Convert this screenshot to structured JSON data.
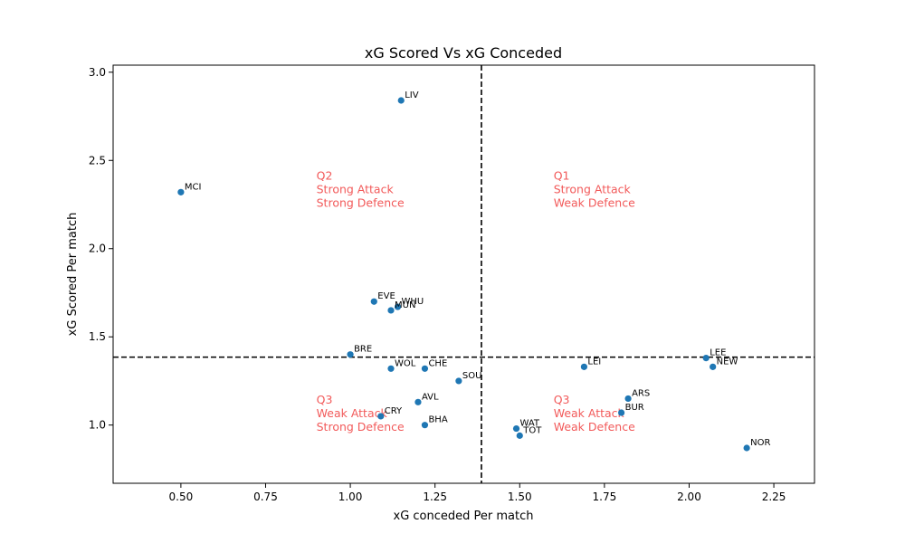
{
  "chart_data": {
    "type": "scatter",
    "title": "xG Scored Vs xG Conceded",
    "xlabel": "xG conceded Per match",
    "ylabel": "xG Scored Per match",
    "xlim": [
      0.3,
      2.37
    ],
    "ylim": [
      0.67,
      3.04
    ],
    "xticks": [
      "0.50",
      "0.75",
      "1.00",
      "1.25",
      "1.50",
      "1.75",
      "2.00",
      "2.25"
    ],
    "yticks": [
      "1.0",
      "1.5",
      "2.0",
      "2.5",
      "3.0"
    ],
    "grid": false,
    "point_color": "#1f77b4",
    "reference_lines": {
      "x": 1.387,
      "y": 1.385
    },
    "quadrant_color": "#f25a5a",
    "quadrants": [
      {
        "lines": [
          "Q1",
          "Strong Attack",
          "Weak Defence"
        ],
        "x": 1.6,
        "y": 2.32
      },
      {
        "lines": [
          "Q2",
          "Strong Attack",
          "Strong Defence"
        ],
        "x": 0.9,
        "y": 2.32
      },
      {
        "lines": [
          "Q3",
          "Weak Attack",
          "Strong Defence"
        ],
        "x": 0.9,
        "y": 1.05
      },
      {
        "lines": [
          "Q3",
          "Weak Attack",
          "Weak Defence"
        ],
        "x": 1.6,
        "y": 1.05
      }
    ],
    "points": [
      {
        "label": "LIV",
        "x": 1.15,
        "y": 2.84
      },
      {
        "label": "MCI",
        "x": 0.5,
        "y": 2.32
      },
      {
        "label": "EVE",
        "x": 1.07,
        "y": 1.7
      },
      {
        "label": "WHU",
        "x": 1.14,
        "y": 1.67
      },
      {
        "label": "MUN",
        "x": 1.12,
        "y": 1.65
      },
      {
        "label": "BRE",
        "x": 1.0,
        "y": 1.4
      },
      {
        "label": "WOL",
        "x": 1.12,
        "y": 1.32
      },
      {
        "label": "CHE",
        "x": 1.22,
        "y": 1.32
      },
      {
        "label": "SOU",
        "x": 1.32,
        "y": 1.25
      },
      {
        "label": "AVL",
        "x": 1.2,
        "y": 1.13
      },
      {
        "label": "CRY",
        "x": 1.09,
        "y": 1.05
      },
      {
        "label": "BHA",
        "x": 1.22,
        "y": 1.0
      },
      {
        "label": "WAT",
        "x": 1.49,
        "y": 0.98
      },
      {
        "label": "TOT",
        "x": 1.5,
        "y": 0.94
      },
      {
        "label": "LEI",
        "x": 1.69,
        "y": 1.33
      },
      {
        "label": "ARS",
        "x": 1.82,
        "y": 1.15
      },
      {
        "label": "BUR",
        "x": 1.8,
        "y": 1.07
      },
      {
        "label": "LEE",
        "x": 2.05,
        "y": 1.38
      },
      {
        "label": "NEW",
        "x": 2.07,
        "y": 1.33
      },
      {
        "label": "NOR",
        "x": 2.17,
        "y": 0.87
      }
    ]
  }
}
